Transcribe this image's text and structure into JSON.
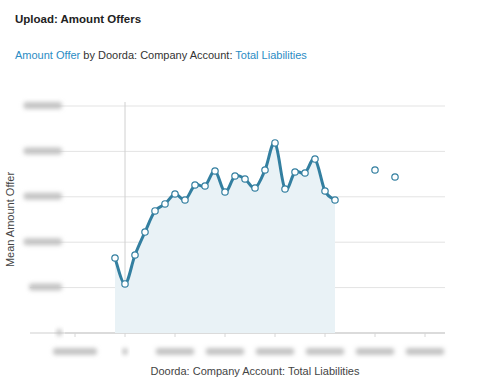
{
  "chart_data": {
    "type": "area",
    "title": "Upload: Amount Offers",
    "subtitle": [
      "Amount Offer",
      "by Doorda: Company Account:",
      "Total Liabilities"
    ],
    "x_label": "Doorda: Company Account: Total Liabilities",
    "y_label": "Mean Amount Offer",
    "x": [
      -200000,
      0,
      200000,
      400000,
      600000,
      800000,
      1000000,
      1200000,
      1400000,
      1600000,
      1800000,
      2000000,
      2200000,
      2400000,
      2600000,
      2800000,
      3000000,
      3200000,
      3400000,
      3600000,
      3800000,
      4000000,
      4200000,
      4400000,
      4600000,
      4800000,
      5000000,
      5200000,
      5400000
    ],
    "series": [
      {
        "color": "#337fa0",
        "marker": "circle",
        "values": [
          826000,
          540000,
          859000,
          1112000,
          1344000,
          1421000,
          1531000,
          1465000,
          1630000,
          1619000,
          1784000,
          1553000,
          1729000,
          1696000,
          1597000,
          1795000,
          2093000,
          1586000,
          1773000,
          1762000,
          1916000,
          1564000,
          1465000,
          null,
          null,
          null,
          1795000,
          null,
          1718000
        ]
      }
    ],
    "xlim": [
      -1200000,
      6400000
    ],
    "xticks": [
      -1000000,
      0,
      1000000,
      2000000,
      3000000,
      4000000,
      5000000,
      6000000
    ],
    "ylim": [
      0,
      2500000
    ],
    "yticks": [
      0,
      500000,
      1000000,
      1500000,
      2000000,
      2500000
    ],
    "grid": true,
    "tick_labels": false
  }
}
